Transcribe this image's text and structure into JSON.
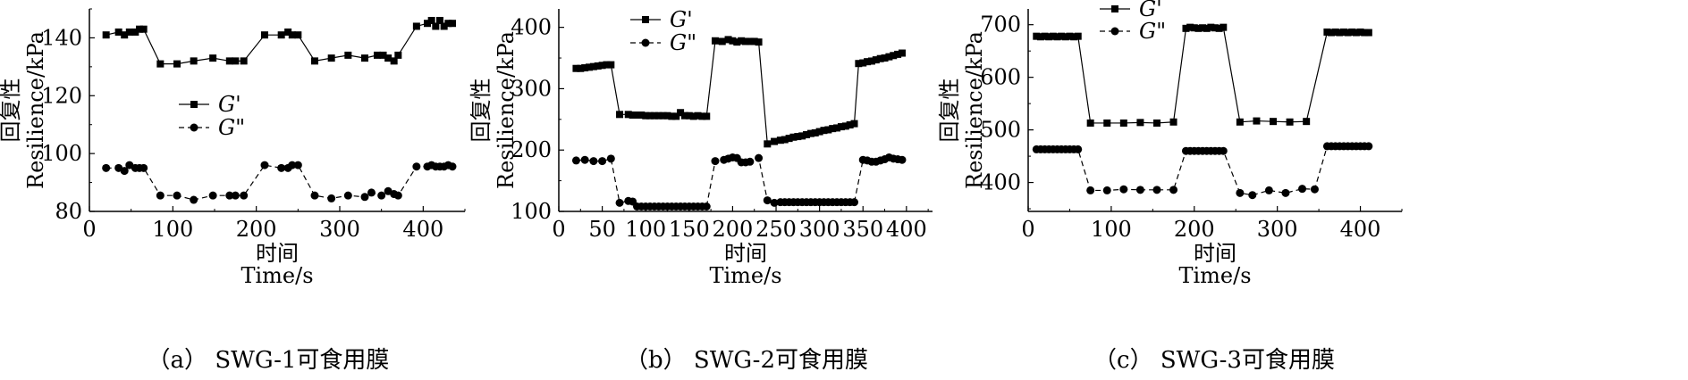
{
  "chart_data": [
    {
      "type": "line",
      "caption": "（a） SWG-1可食用膜",
      "xlabel_cn": "时间",
      "xlabel_en": "Time/s",
      "ylabel_cn": "回复性",
      "ylabel_en": "Resilience/kPa",
      "xlim": [
        0,
        450
      ],
      "ylim": [
        80,
        150
      ],
      "xticks": [
        0,
        100,
        200,
        300,
        400
      ],
      "yticks": [
        80,
        100,
        120,
        140
      ],
      "legend_position": "center-left",
      "series": [
        {
          "name": "G'",
          "marker": "square",
          "line": "solid",
          "x": [
            20,
            35,
            42,
            48,
            55,
            60,
            65,
            85,
            105,
            125,
            148,
            168,
            175,
            185,
            210,
            230,
            238,
            243,
            250,
            270,
            290,
            310,
            330,
            345,
            352,
            358,
            365,
            370,
            392,
            405,
            410,
            415,
            420,
            425,
            430,
            435
          ],
          "y": [
            141,
            142,
            141,
            142,
            142,
            143,
            143,
            131,
            131,
            132,
            133,
            132,
            132,
            132,
            141,
            141,
            142,
            141,
            141,
            132,
            133,
            134,
            133,
            134,
            134,
            133,
            132,
            134,
            144,
            145,
            146,
            144,
            146,
            144,
            145,
            145
          ]
        },
        {
          "name": "G\"",
          "marker": "circle",
          "line": "dashed",
          "x": [
            20,
            35,
            42,
            48,
            55,
            60,
            65,
            85,
            105,
            125,
            148,
            168,
            175,
            185,
            210,
            230,
            238,
            243,
            250,
            270,
            290,
            310,
            330,
            338,
            350,
            358,
            365,
            370,
            392,
            405,
            410,
            415,
            420,
            425,
            430,
            435
          ],
          "y": [
            95,
            95,
            94,
            96,
            95,
            95,
            95,
            85.5,
            85.5,
            84,
            85.5,
            85.5,
            85.5,
            85.5,
            96,
            95,
            95,
            96,
            96,
            85.5,
            84.5,
            85.5,
            85,
            86.5,
            85.5,
            87,
            86,
            85.5,
            95.5,
            95.5,
            96,
            95.5,
            95.5,
            95.5,
            96,
            95.5
          ]
        }
      ]
    },
    {
      "type": "line",
      "caption": "（b） SWG-2可食用膜",
      "xlabel_cn": "时间",
      "xlabel_en": "Time/s",
      "ylabel_cn": "回复性",
      "ylabel_en": "Resilience/kPa",
      "xlim": [
        0,
        430
      ],
      "ylim": [
        100,
        430
      ],
      "xticks": [
        0,
        50,
        100,
        150,
        200,
        250,
        300,
        350,
        400
      ],
      "yticks": [
        100,
        200,
        300,
        400
      ],
      "legend_position": "top-left",
      "series": [
        {
          "name": "G'",
          "marker": "square",
          "line": "solid",
          "x": [
            20,
            25,
            30,
            35,
            40,
            45,
            50,
            55,
            60,
            70,
            80,
            85,
            90,
            95,
            100,
            105,
            110,
            115,
            120,
            125,
            130,
            135,
            140,
            145,
            150,
            155,
            160,
            165,
            170,
            180,
            188,
            195,
            200,
            205,
            210,
            215,
            220,
            225,
            230,
            240,
            248,
            255,
            260,
            265,
            270,
            275,
            280,
            285,
            290,
            295,
            300,
            305,
            310,
            315,
            320,
            325,
            330,
            335,
            340,
            345,
            350,
            355,
            360,
            365,
            370,
            375,
            380,
            385,
            390,
            395
          ],
          "y": [
            333,
            333,
            334,
            335,
            336,
            337,
            338,
            339,
            339,
            258,
            258,
            257,
            257,
            257,
            256,
            256,
            256,
            256,
            256,
            256,
            255,
            255,
            261,
            256,
            256,
            255,
            256,
            255,
            255,
            378,
            377,
            380,
            378,
            376,
            378,
            377,
            377,
            377,
            376,
            210,
            214,
            216,
            217,
            219,
            221,
            222,
            223,
            225,
            227,
            228,
            230,
            232,
            233,
            235,
            236,
            238,
            239,
            241,
            243,
            341,
            342,
            344,
            345,
            347,
            349,
            350,
            352,
            354,
            356,
            358
          ]
        },
        {
          "name": "G\"",
          "marker": "circle",
          "line": "dashed",
          "x": [
            20,
            30,
            40,
            50,
            60,
            70,
            80,
            85,
            90,
            95,
            100,
            105,
            110,
            115,
            120,
            125,
            130,
            135,
            140,
            145,
            150,
            155,
            160,
            165,
            170,
            180,
            190,
            195,
            200,
            205,
            210,
            215,
            220,
            230,
            240,
            248,
            255,
            260,
            265,
            270,
            275,
            280,
            285,
            290,
            295,
            300,
            305,
            310,
            315,
            320,
            325,
            330,
            335,
            340,
            350,
            355,
            360,
            365,
            370,
            375,
            380,
            385,
            390,
            395
          ],
          "y": [
            183,
            184,
            182,
            182,
            186,
            114,
            117,
            116,
            108,
            108,
            108,
            108,
            108,
            108,
            108,
            108,
            108,
            108,
            108,
            108,
            108,
            108,
            108,
            108,
            108,
            182,
            184,
            186,
            188,
            187,
            180,
            180,
            181,
            187,
            118,
            114,
            115,
            115,
            115,
            115,
            115,
            115,
            115,
            115,
            115,
            115,
            115,
            115,
            115,
            115,
            115,
            115,
            115,
            115,
            184,
            183,
            181,
            181,
            183,
            185,
            188,
            186,
            185,
            184
          ]
        }
      ]
    },
    {
      "type": "line",
      "caption": "（c） SWG-3可食用膜",
      "xlabel_cn": "时间",
      "xlabel_en": "Time/s",
      "ylabel_cn": "回复性",
      "ylabel_en": "Resilience/kPa",
      "xlim": [
        0,
        450
      ],
      "ylim": [
        345,
        730
      ],
      "xticks": [
        0,
        100,
        200,
        300,
        400
      ],
      "yticks": [
        400,
        500,
        600,
        700
      ],
      "legend_position": "top-left",
      "series": [
        {
          "name": "G'",
          "marker": "square",
          "line": "solid",
          "x": [
            10,
            15,
            20,
            25,
            30,
            35,
            40,
            45,
            50,
            55,
            60,
            75,
            95,
            115,
            135,
            155,
            175,
            190,
            195,
            200,
            205,
            210,
            215,
            220,
            225,
            230,
            235,
            255,
            275,
            295,
            315,
            335,
            360,
            365,
            370,
            375,
            380,
            385,
            390,
            395,
            400,
            405,
            410
          ],
          "y": [
            678,
            677,
            678,
            677,
            678,
            677,
            678,
            677,
            678,
            677,
            678,
            513,
            513,
            513,
            514,
            513,
            515,
            693,
            695,
            694,
            693,
            694,
            693,
            695,
            694,
            693,
            695,
            515,
            517,
            516,
            515,
            516,
            686,
            685,
            686,
            685,
            686,
            685,
            686,
            685,
            686,
            685,
            685
          ]
        },
        {
          "name": "G\"",
          "marker": "circle",
          "line": "dashed",
          "x": [
            10,
            15,
            20,
            25,
            30,
            35,
            40,
            45,
            50,
            55,
            60,
            75,
            95,
            115,
            135,
            155,
            175,
            190,
            195,
            200,
            205,
            210,
            215,
            220,
            225,
            230,
            235,
            255,
            270,
            290,
            310,
            330,
            345,
            360,
            365,
            370,
            375,
            380,
            385,
            390,
            395,
            400,
            405,
            410
          ],
          "y": [
            463,
            463,
            463,
            463,
            463,
            463,
            463,
            463,
            463,
            463,
            463,
            385,
            385,
            387,
            386,
            386,
            386,
            460,
            460,
            460,
            460,
            460,
            460,
            460,
            460,
            460,
            460,
            380,
            376,
            385,
            380,
            388,
            387,
            469,
            469,
            469,
            469,
            469,
            469,
            469,
            469,
            469,
            469,
            469
          ]
        }
      ]
    }
  ]
}
